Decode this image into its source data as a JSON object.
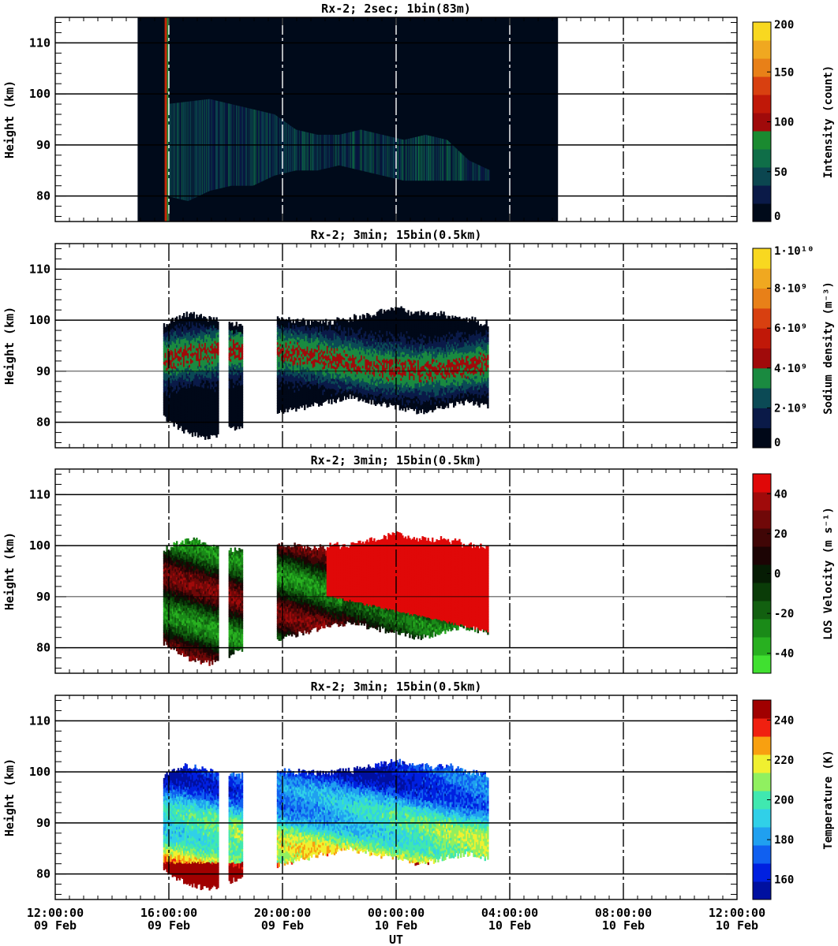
{
  "figure": {
    "x_axis": {
      "label": "UT",
      "range_hours": [
        12,
        36
      ],
      "ticks": [
        {
          "hour": 12,
          "time": "12:00:00",
          "date": "09 Feb"
        },
        {
          "hour": 16,
          "time": "16:00:00",
          "date": "09 Feb"
        },
        {
          "hour": 20,
          "time": "20:00:00",
          "date": "09 Feb"
        },
        {
          "hour": 24,
          "time": "00:00:00",
          "date": "10 Feb"
        },
        {
          "hour": 28,
          "time": "04:00:00",
          "date": "10 Feb"
        },
        {
          "hour": 32,
          "time": "08:00:00",
          "date": "10 Feb"
        },
        {
          "hour": 36,
          "time": "12:00:00",
          "date": "10 Feb"
        }
      ]
    }
  },
  "chart_data": [
    {
      "type": "heatmap",
      "title": "Rx-2;  2sec; 1bin(83m)",
      "ylabel": "Height (km)",
      "ylim": [
        75,
        115
      ],
      "yticks": [
        80,
        90,
        100,
        110
      ],
      "colorbar": {
        "label": "Intensity (count)",
        "range": [
          0,
          200
        ],
        "ticks": [
          {
            "v": 0,
            "t": "0"
          },
          {
            "v": 50,
            "t": "50"
          },
          {
            "v": 100,
            "t": "100"
          },
          {
            "v": 150,
            "t": "150"
          },
          {
            "v": 200,
            "t": "200"
          }
        ],
        "colors": [
          "#000a1a",
          "#0a1a48",
          "#0b4650",
          "#0f6e48",
          "#1a8a30",
          "#a00a0a",
          "#c01808",
          "#d84010",
          "#e88018",
          "#f0a820",
          "#f8d820"
        ]
      },
      "data_window_hours": [
        14.9,
        29.7
      ],
      "layer": {
        "top": [
          98,
          98.5,
          99,
          98,
          97,
          96,
          93,
          92,
          92,
          93,
          92,
          91,
          92,
          91,
          87,
          85
        ],
        "bottom": [
          80,
          79,
          81,
          82,
          82,
          84,
          85,
          85,
          86,
          85,
          84,
          83,
          83,
          83,
          83,
          83
        ],
        "start": 15.9,
        "end": 27.3
      }
    },
    {
      "type": "heatmap",
      "title": "Rx-2; 3min; 15bin(0.5km)",
      "ylabel": "Height (km)",
      "ylim": [
        75,
        115
      ],
      "yticks": [
        80,
        90,
        100,
        110
      ],
      "colorbar": {
        "label": "Sodium density (m⁻³)",
        "range": [
          0,
          10
        ],
        "ticks": [
          {
            "v": 0,
            "t": "0"
          },
          {
            "v": 2,
            "t": "2·10⁹"
          },
          {
            "v": 4,
            "t": "4·10⁹"
          },
          {
            "v": 6,
            "t": "6·10⁹"
          },
          {
            "v": 8,
            "t": "8·10⁹"
          },
          {
            "v": 10,
            "t": "1·10¹⁰"
          }
        ],
        "colors": [
          "#000818",
          "#0a1a48",
          "#0b4a55",
          "#1a8a40",
          "#a00a0a",
          "#c01808",
          "#d84010",
          "#e88018",
          "#f0a820",
          "#f8d820"
        ]
      },
      "data_segments_hours": [
        [
          15.8,
          17.75
        ],
        [
          18.1,
          18.6
        ],
        [
          19.8,
          27.25
        ]
      ]
    },
    {
      "type": "heatmap",
      "title": "Rx-2; 3min; 15bin(0.5km)",
      "ylabel": "Height (km)",
      "ylim": [
        75,
        115
      ],
      "yticks": [
        80,
        90,
        100,
        110
      ],
      "colorbar": {
        "label": "LOS Velocity (m s⁻¹)",
        "range": [
          -50,
          50
        ],
        "ticks": [
          {
            "v": -40,
            "t": "-40"
          },
          {
            "v": -20,
            "t": "-20"
          },
          {
            "v": 0,
            "t": "0"
          },
          {
            "v": 20,
            "t": "20"
          },
          {
            "v": 40,
            "t": "40"
          }
        ],
        "colors": [
          "#40e030",
          "#28b020",
          "#1a8a18",
          "#126010",
          "#0a3c08",
          "#061c04",
          "#1c0404",
          "#400606",
          "#700808",
          "#a00a0a",
          "#e00808"
        ]
      },
      "data_segments_hours": [
        [
          15.8,
          17.75
        ],
        [
          18.1,
          18.6
        ],
        [
          19.8,
          27.25
        ]
      ]
    },
    {
      "type": "heatmap",
      "title": "Rx-2; 3min; 15bin(0.5km)",
      "ylabel": "Height (km)",
      "ylim": [
        75,
        115
      ],
      "yticks": [
        80,
        90,
        100,
        110
      ],
      "colorbar": {
        "label": "Temperature (K)",
        "range": [
          150,
          250
        ],
        "ticks": [
          {
            "v": 160,
            "t": "160"
          },
          {
            "v": 180,
            "t": "180"
          },
          {
            "v": 200,
            "t": "200"
          },
          {
            "v": 220,
            "t": "220"
          },
          {
            "v": 240,
            "t": "240"
          }
        ],
        "colors": [
          "#0010a0",
          "#0020e0",
          "#1060f0",
          "#20a0f0",
          "#30d0e8",
          "#40e8b0",
          "#90f060",
          "#f0f030",
          "#f8a010",
          "#f02010",
          "#a00000"
        ]
      },
      "data_segments_hours": [
        [
          15.8,
          17.75
        ],
        [
          18.1,
          18.6
        ],
        [
          19.8,
          27.25
        ]
      ]
    }
  ]
}
